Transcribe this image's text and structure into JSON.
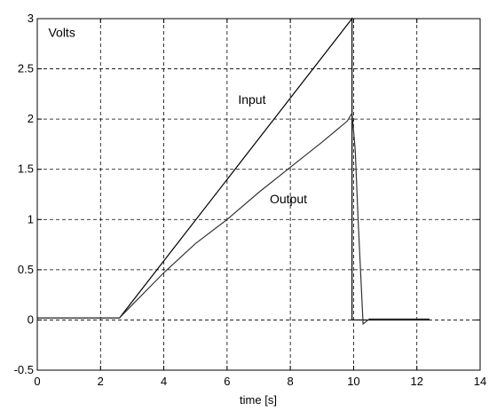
{
  "chart_data": {
    "type": "line",
    "title": "",
    "xlabel": "time [s]",
    "ylabel": "",
    "xlim": [
      0,
      14
    ],
    "ylim": [
      -0.5,
      3
    ],
    "xticks": [
      0,
      2,
      4,
      6,
      8,
      10,
      12,
      14
    ],
    "yticks": [
      -0.5,
      0,
      0.5,
      1,
      1.5,
      2,
      2.5,
      3
    ],
    "xtick_labels": [
      "0",
      "2",
      "4",
      "6",
      "8",
      "10",
      "12",
      "14"
    ],
    "ytick_labels": [
      "-0.5",
      "0",
      "0.5",
      "1",
      "1.5",
      "2",
      "2.5",
      "3"
    ],
    "grid": true,
    "grid_style": "dashed",
    "series": [
      {
        "name": "Input",
        "color": "#000000",
        "x": [
          0,
          2.6,
          9.95,
          9.95,
          10.0,
          12.4
        ],
        "y": [
          0.02,
          0.02,
          3.0,
          0.0,
          0.0,
          0.0
        ]
      },
      {
        "name": "Output",
        "color": "#333333",
        "x": [
          0,
          2.6,
          3.0,
          4.0,
          5.0,
          6.0,
          7.0,
          8.0,
          9.0,
          9.8,
          9.95,
          10.05,
          10.15,
          10.3,
          10.5,
          12.4
        ],
        "y": [
          0.02,
          0.02,
          0.15,
          0.47,
          0.76,
          1.0,
          1.27,
          1.52,
          1.77,
          1.98,
          2.06,
          1.7,
          0.95,
          -0.04,
          0.01,
          0.01
        ]
      }
    ],
    "annotations": [
      {
        "text": "Volts",
        "x": 0.35,
        "y": 2.82
      },
      {
        "text": "Input",
        "x": 6.35,
        "y": 2.15
      },
      {
        "text": "Output",
        "x": 7.35,
        "y": 1.16
      }
    ]
  }
}
